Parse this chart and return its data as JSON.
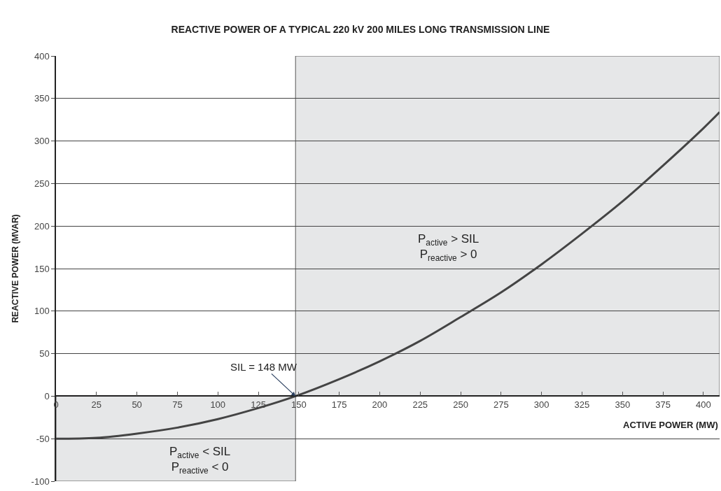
{
  "chart_data": {
    "type": "line",
    "title": "REACTIVE POWER OF A TYPICAL 220 kV 200 MILES LONG TRANSMISSION LINE",
    "xlabel": "ACTIVE POWER (MW)",
    "ylabel": "REACTIVE POWER (MVAR)",
    "x": [
      0,
      25,
      50,
      75,
      100,
      125,
      148,
      175,
      200,
      225,
      250,
      275,
      300,
      325,
      350,
      375,
      400,
      410
    ],
    "series": [
      {
        "color": "#444444",
        "values": [
          -50,
          -49,
          -44,
          -37,
          -27,
          -14,
          0,
          20,
          41,
          65,
          93,
          122,
          155,
          191,
          229,
          271,
          315,
          334
        ]
      }
    ],
    "xlim": [
      0,
      410
    ],
    "xticks": [
      0,
      25,
      50,
      75,
      100,
      125,
      150,
      175,
      200,
      225,
      250,
      275,
      300,
      325,
      350,
      375,
      400
    ],
    "ylim": [
      -100,
      400
    ],
    "yticks": [
      -100,
      -50,
      0,
      50,
      100,
      150,
      200,
      250,
      300,
      350,
      400
    ],
    "grid": "y",
    "marker": "none",
    "line_style": "solid",
    "bands": [
      {
        "axis": "x",
        "from": 148,
        "to": 410,
        "label": "P$_{active}$ > SIL\nP$_{reactive}$ > 0",
        "color": "#e6e7e8"
      },
      {
        "axis": "x",
        "from": 0,
        "to": 148,
        "label": "P$_{active}$ < SIL\nP$_{reactive}$ < 0",
        "color": "#e6e7e8"
      }
    ],
    "annotations": [
      {
        "text": "SIL = 148 MW",
        "x": 148,
        "y": 0
      }
    ]
  }
}
